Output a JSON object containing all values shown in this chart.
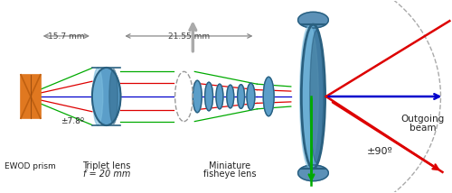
{
  "bg_color": "#ffffff",
  "lens_blue": "#5B9EC9",
  "lens_blue_dark": "#2A6080",
  "lens_blue_mid": "#4A85B0",
  "lens_blue_light": "#7ABCDE",
  "lens_blue_deep": "#1A4A6A",
  "ewod_orange": "#E07820",
  "ewod_dark": "#A05010",
  "ewod_line": "#C06010",
  "label_ewod": "EWOD prism",
  "label_triplet_1": "Triplet lens",
  "label_triplet_2": "f = 20 mm",
  "label_fisheye_1": "Miniature",
  "label_fisheye_2": "fisheye lens",
  "label_outgoing_1": "Outgoing",
  "label_outgoing_2": "beam",
  "label_angle_ewod": "±7.8º",
  "label_angle_out": "±90º",
  "label_15_7": "15.7 mm",
  "label_21_55": "21.55 mm",
  "color_green": "#00AA00",
  "color_red": "#DD0000",
  "color_blue": "#0000CC",
  "color_gray": "#888888",
  "color_gray_dim": "#AAAAAA",
  "oy": 0.5
}
